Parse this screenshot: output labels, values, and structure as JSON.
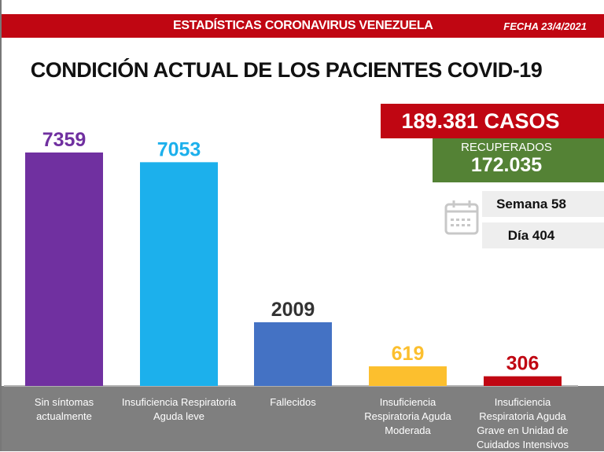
{
  "header": {
    "title": "ESTADÍSTICAS CORONAVIRUS VENEZUELA",
    "date": "FECHA 23/4/2021"
  },
  "summary": {
    "cases": "189.381 CASOS",
    "recovered_label": "RECUPERADOS",
    "recovered_value": "172.035",
    "week": "Semana 58",
    "day": "Día 404",
    "calendar_icon": "calendar-icon"
  },
  "colors": {
    "header": "#c00612",
    "recovered": "#548235"
  },
  "chart_data": {
    "type": "bar",
    "title": "CONDICIÓN ACTUAL DE LOS PACIENTES COVID-19",
    "categories": [
      "Sin síntomas actualmente",
      "Insuficiencia Respiratoria Aguda leve",
      "Fallecidos",
      "Insuficiencia Respiratoria Aguda Moderada",
      "Insuficiencia Respiratoria Aguda Grave en Unidad de Cuidados Intensivos"
    ],
    "values": [
      7359,
      7053,
      2009,
      619,
      306
    ],
    "labels": [
      "7359",
      "7053",
      "2009",
      "619",
      "306"
    ],
    "colors": [
      "#7030a0",
      "#1cb0ec",
      "#4472c4",
      "#fcbf2e",
      "#c00612"
    ],
    "label_colors": [
      "#7030a0",
      "#1cb0ec",
      "#333333",
      "#fcbf2e",
      "#c00612"
    ],
    "ylim": [
      0,
      7359
    ],
    "grid": false
  }
}
